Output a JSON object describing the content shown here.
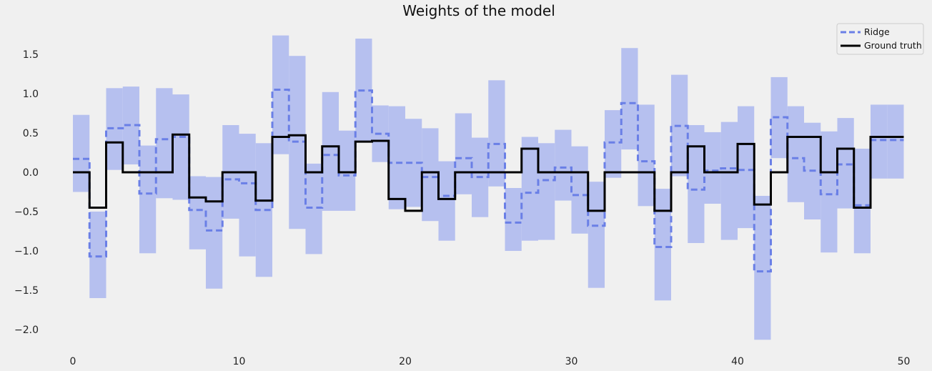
{
  "chart_data": {
    "type": "line",
    "title": "Weights of the model",
    "xlabel": "",
    "ylabel": "",
    "xlim": [
      -1,
      50.5
    ],
    "ylim": [
      -2.3,
      1.8
    ],
    "xticks": [
      0,
      10,
      20,
      30,
      40,
      50
    ],
    "xtick_labels": [
      "0",
      "10",
      "20",
      "30",
      "40",
      "50"
    ],
    "yticks": [
      1.5,
      1.0,
      0.5,
      0.0,
      -0.5,
      -1.0,
      -1.5,
      -2.0
    ],
    "ytick_labels": [
      "1.5",
      "1.0",
      "0.5",
      "0.0",
      "−0.5",
      "−1.0",
      "−1.5",
      "−2.0"
    ],
    "grid": false,
    "legend_position": "top-right",
    "colors": {
      "ridge": "#6a7fe6",
      "band": "#b6c0ef",
      "ground_truth": "#000000",
      "background": "#f0f0f0"
    },
    "x": [
      0,
      1,
      2,
      3,
      4,
      5,
      6,
      7,
      8,
      9,
      10,
      11,
      12,
      13,
      14,
      15,
      16,
      17,
      18,
      19,
      20,
      21,
      22,
      23,
      24,
      25,
      26,
      27,
      28,
      29,
      30,
      31,
      32,
      33,
      34,
      35,
      36,
      37,
      38,
      39,
      40,
      41,
      42,
      43,
      44,
      45,
      46,
      47,
      48,
      49
    ],
    "series": [
      {
        "name": "Ridge",
        "style": "dashed-step",
        "values": [
          0.17,
          -1.07,
          0.56,
          0.6,
          -0.27,
          0.42,
          0.45,
          -0.48,
          -0.74,
          -0.09,
          -0.14,
          -0.48,
          1.05,
          0.39,
          -0.45,
          0.22,
          -0.04,
          1.04,
          0.49,
          0.12,
          0.12,
          -0.06,
          -0.3,
          0.18,
          -0.06,
          0.36,
          -0.64,
          -0.26,
          -0.1,
          0.06,
          -0.29,
          -0.68,
          0.38,
          0.88,
          0.14,
          -0.95,
          0.59,
          -0.22,
          0.02,
          0.05,
          0.03,
          -1.26,
          0.7,
          0.18,
          0.02,
          -0.28,
          0.1,
          -0.42,
          0.41,
          0.41
        ],
        "lower": [
          -0.25,
          -1.6,
          0.03,
          0.1,
          -1.03,
          -0.33,
          -0.35,
          -0.98,
          -1.48,
          -0.59,
          -1.07,
          -1.33,
          0.23,
          -0.72,
          -1.04,
          -0.49,
          -0.49,
          0.4,
          0.13,
          -0.47,
          -0.44,
          -0.62,
          -0.87,
          -0.28,
          -0.57,
          -0.18,
          -1.0,
          -0.87,
          -0.86,
          -0.36,
          -0.78,
          -1.47,
          -0.07,
          0.29,
          -0.43,
          -1.63,
          -0.05,
          -0.9,
          -0.4,
          -0.86,
          -0.71,
          -2.13,
          0.18,
          -0.38,
          -0.6,
          -1.02,
          -0.46,
          -1.03,
          -0.08,
          -0.08
        ],
        "upper": [
          0.73,
          -0.5,
          1.07,
          1.09,
          0.34,
          1.07,
          0.99,
          -0.05,
          -0.06,
          0.6,
          0.49,
          0.37,
          1.74,
          1.48,
          0.11,
          1.02,
          0.53,
          1.7,
          0.85,
          0.84,
          0.68,
          0.56,
          0.14,
          0.75,
          0.44,
          1.17,
          -0.2,
          0.45,
          0.37,
          0.54,
          0.33,
          -0.12,
          0.79,
          1.58,
          0.86,
          -0.21,
          1.24,
          0.6,
          0.51,
          0.64,
          0.84,
          -0.3,
          1.21,
          0.84,
          0.63,
          0.52,
          0.69,
          0.3,
          0.86,
          0.86
        ]
      },
      {
        "name": "Ground truth",
        "style": "solid-step",
        "values": [
          0,
          -0.45,
          0.38,
          0,
          0,
          0,
          0.48,
          -0.32,
          -0.37,
          0,
          0,
          -0.36,
          0.45,
          0.47,
          0,
          0.33,
          0,
          0.39,
          0.4,
          -0.34,
          -0.49,
          0,
          -0.34,
          0,
          0,
          0,
          0,
          0.3,
          0,
          0,
          0,
          -0.49,
          0,
          0,
          0,
          -0.49,
          0,
          0.33,
          0,
          0,
          0.36,
          -0.41,
          0,
          0.45,
          0.45,
          0,
          0.3,
          -0.45,
          0.45,
          0.45
        ]
      }
    ]
  }
}
